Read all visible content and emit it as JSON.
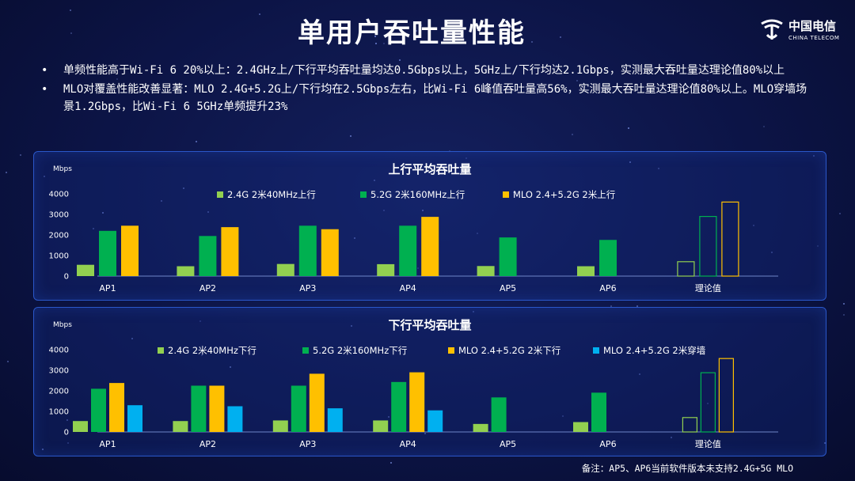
{
  "title": "单用户吞吐量性能",
  "logo": {
    "cn": "中国电信",
    "en": "CHINA TELECOM"
  },
  "bullets": [
    "单频性能高于Wi-Fi 6 20%以上：2.4GHz上/下行平均吞吐量均达0.5Gbps以上，5GHz上/下行均达2.1Gbps，实测最大吞吐量达理论值80%以上",
    "MLO对覆盖性能改善显著：MLO 2.4G+5.2G上/下行均在2.5Gbps左右，比Wi-Fi 6峰值吞吐量高56%，实测最大吞吐量达理论值80%以上。MLO穿墙场景1.2Gbps，比Wi-Fi 6 5GHz单频提升23%"
  ],
  "note": "备注：AP5、AP6当前软件版本未支持2.4G+5G MLO",
  "colors": {
    "s24": "#92d050",
    "s52": "#00b050",
    "mlo": "#ffc000",
    "wall": "#00b0f0"
  },
  "chart_data": [
    {
      "type": "bar",
      "title": "上行平均吞吐量",
      "ylabel": "Mbps",
      "ylim": [
        0,
        4000
      ],
      "yticks": [
        0,
        1000,
        2000,
        3000,
        4000
      ],
      "categories": [
        "AP1",
        "AP2",
        "AP3",
        "AP4",
        "AP5",
        "AP6",
        "理论值"
      ],
      "series": [
        {
          "name": "2.4G 2米40MHz上行",
          "color": "#92d050",
          "values": [
            550,
            480,
            590,
            580,
            490,
            480,
            700
          ]
        },
        {
          "name": "5.2G 2米160MHz上行",
          "color": "#00b050",
          "values": [
            2200,
            1950,
            2450,
            2450,
            1880,
            1760,
            2900
          ]
        },
        {
          "name": "MLO 2.4+5.2G 2米上行",
          "color": "#ffc000",
          "values": [
            2450,
            2380,
            2280,
            2880,
            null,
            null,
            3600
          ]
        }
      ],
      "hollow_category": "理论值",
      "grid": false,
      "legend": "top"
    },
    {
      "type": "bar",
      "title": "下行平均吞吐量",
      "ylabel": "Mbps",
      "ylim": [
        0,
        4000
      ],
      "yticks": [
        0,
        1000,
        2000,
        3000,
        4000
      ],
      "categories": [
        "AP1",
        "AP2",
        "AP3",
        "AP4",
        "AP5",
        "AP6",
        "理论值"
      ],
      "series": [
        {
          "name": "2.4G 2米40MHz下行",
          "color": "#92d050",
          "values": [
            530,
            530,
            560,
            560,
            390,
            480,
            700
          ]
        },
        {
          "name": "5.2G 2米160MHz下行",
          "color": "#00b050",
          "values": [
            2100,
            2250,
            2250,
            2430,
            1680,
            1910,
            2880
          ]
        },
        {
          "name": "MLO 2.4+5.2G 2米下行",
          "color": "#ffc000",
          "values": [
            2380,
            2250,
            2830,
            2900,
            null,
            null,
            3570
          ]
        },
        {
          "name": "MLO 2.4+5.2G 2米穿墙",
          "color": "#00b0f0",
          "values": [
            1300,
            1250,
            1150,
            1050,
            null,
            null,
            null
          ]
        }
      ],
      "hollow_category": "理论值",
      "grid": false,
      "legend": "top"
    }
  ]
}
